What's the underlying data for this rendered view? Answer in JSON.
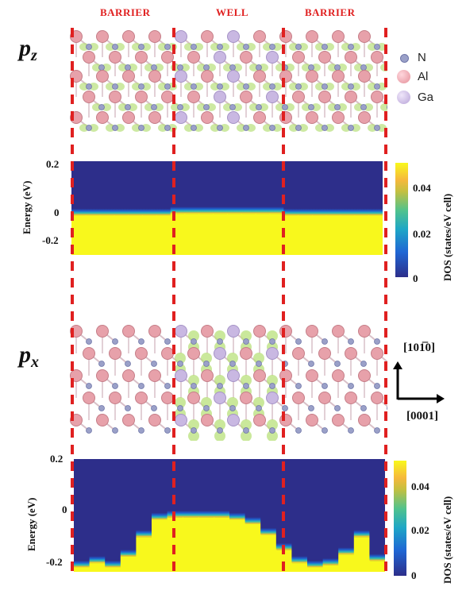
{
  "regions": [
    "BARRIER",
    "WELL",
    "BARRIER"
  ],
  "orbitals": {
    "pz": {
      "main": "p",
      "sub": "z"
    },
    "px": {
      "main": "p",
      "sub": "x"
    }
  },
  "legend": {
    "items": [
      {
        "label": "N",
        "color": "#9aa0c8"
      },
      {
        "label": "Al",
        "color": "#e8a0a8"
      },
      {
        "label": "Ga",
        "color": "#c8b8e0"
      }
    ]
  },
  "directions": {
    "vertical": "[101̅0]",
    "horizontal": "[0001]"
  },
  "colors": {
    "divider": "#e02020",
    "low": "#2d2e8a",
    "high": "#f8f81c",
    "isosurface": "#b8e07a"
  },
  "plots": {
    "top": {
      "ylabel": "Energy (eV)",
      "yticks": [
        "0.2",
        "0",
        "-0.2"
      ],
      "cbar_label": "DOS (states/eV cell)",
      "cbar_ticks": [
        "0.04",
        "0.02",
        "0"
      ]
    },
    "bottom": {
      "ylabel": "Energy (eV)",
      "yticks": [
        "0.2",
        "0",
        "-0.2"
      ],
      "cbar_label": "DOS (states/eV cell)",
      "cbar_ticks": [
        "0.04",
        "0.02",
        "0"
      ]
    }
  },
  "chart_data": [
    {
      "type": "heatmap",
      "name": "pz projected DOS",
      "ylabel": "Energy (eV)",
      "ylim": [
        -0.28,
        0.22
      ],
      "zlim": [
        0,
        0.05
      ],
      "x_regions": [
        "BARRIER",
        "WELL",
        "BARRIER"
      ],
      "band_edge_eV": [
        -0.07,
        -0.07,
        -0.07,
        -0.07,
        -0.07,
        -0.07,
        -0.07,
        -0.06,
        -0.06,
        -0.06,
        -0.06,
        -0.06,
        -0.06,
        -0.06,
        -0.06,
        -0.07,
        -0.07,
        -0.07,
        -0.07,
        -0.07,
        -0.07,
        -0.07
      ]
    },
    {
      "type": "heatmap",
      "name": "px projected DOS",
      "ylabel": "Energy (eV)",
      "ylim": [
        -0.3,
        0.22
      ],
      "zlim": [
        0,
        0.05
      ],
      "x_regions": [
        "BARRIER",
        "WELL",
        "BARRIER"
      ],
      "band_edge_eV": [
        -0.28,
        -0.26,
        -0.28,
        -0.23,
        -0.14,
        -0.06,
        -0.05,
        -0.05,
        -0.05,
        -0.05,
        -0.06,
        -0.08,
        -0.13,
        -0.2,
        -0.26,
        -0.28,
        -0.27,
        -0.22,
        -0.14,
        -0.25
      ]
    }
  ]
}
